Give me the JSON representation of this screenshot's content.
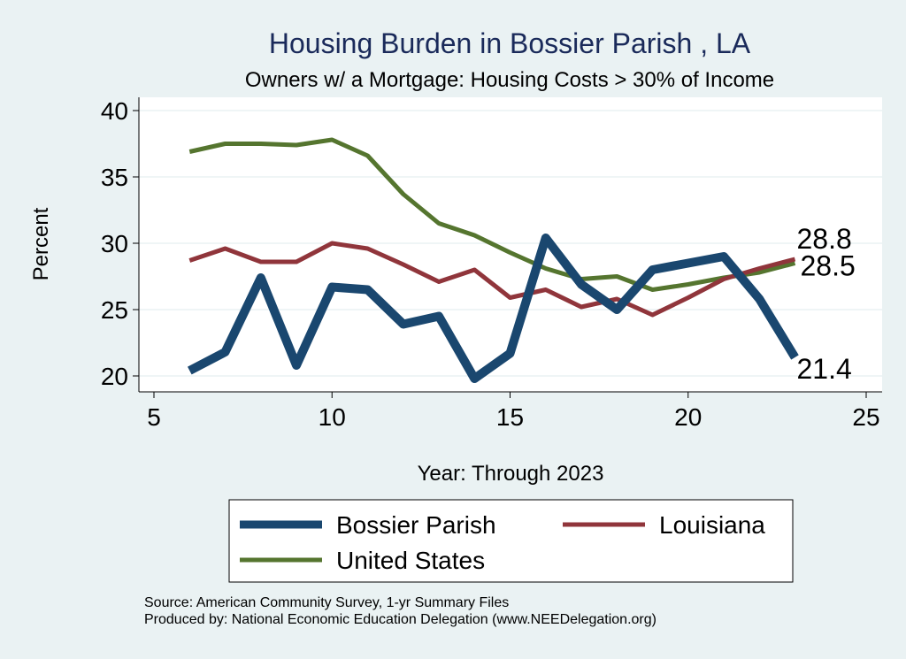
{
  "chart_data": {
    "type": "line",
    "title": "Housing Burden in Bossier Parish , LA",
    "subtitle": "Owners w/ a Mortgage: Housing Costs > 30% of Income",
    "xlabel": "Year: Through 2023",
    "ylabel": "Percent",
    "xlim": [
      5,
      25
    ],
    "ylim": [
      20,
      40
    ],
    "x_ticks": [
      5,
      10,
      15,
      20,
      25
    ],
    "y_ticks": [
      20,
      25,
      30,
      35,
      40
    ],
    "grid": true,
    "legend_position": "bottom",
    "series": [
      {
        "name": "Bossier Parish",
        "color": "#1a476f",
        "end_label": "21.4",
        "x": [
          6,
          7,
          8,
          9,
          10,
          11,
          12,
          13,
          14,
          15,
          16,
          17,
          18,
          19,
          20,
          21,
          22,
          23
        ],
        "values": [
          20.4,
          21.8,
          27.4,
          20.8,
          26.7,
          26.5,
          23.9,
          24.5,
          19.8,
          21.7,
          30.4,
          26.9,
          25.0,
          28.0,
          28.5,
          29.0,
          25.8,
          21.4
        ]
      },
      {
        "name": "Louisiana",
        "color": "#90353b",
        "end_label": "28.8",
        "x": [
          6,
          7,
          8,
          9,
          10,
          11,
          12,
          13,
          14,
          15,
          16,
          17,
          18,
          19,
          20,
          21,
          22,
          23
        ],
        "values": [
          28.7,
          29.6,
          28.6,
          28.6,
          30.0,
          29.6,
          28.4,
          27.1,
          28.0,
          25.9,
          26.5,
          25.2,
          25.8,
          24.6,
          25.9,
          27.3,
          28.1,
          28.8
        ]
      },
      {
        "name": "United States",
        "color": "#55752f",
        "end_label": "28.5",
        "x": [
          6,
          7,
          8,
          9,
          10,
          11,
          12,
          13,
          14,
          15,
          16,
          17,
          18,
          19,
          20,
          21,
          22,
          23
        ],
        "values": [
          36.9,
          37.5,
          37.5,
          37.4,
          37.8,
          36.6,
          33.7,
          31.5,
          30.6,
          29.3,
          28.1,
          27.3,
          27.5,
          26.5,
          26.9,
          27.4,
          27.8,
          28.5
        ]
      }
    ]
  },
  "footer": {
    "source": "Source: American Community Survey, 1-yr Summary Files",
    "produced": "Produced by: National Economic Education Delegation (www.NEEDelegation.org)"
  }
}
